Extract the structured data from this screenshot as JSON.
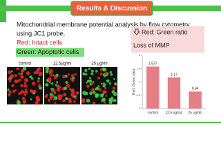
{
  "header": {
    "title": "Results & Discussion"
  },
  "text": {
    "line1": "Mitochondrial membrane potential analysis by flow cytometry",
    "line2": "using JC1 probe.",
    "red_label": "Red: Intact cells",
    "green_label": "Green: Apoptotic cells"
  },
  "images": {
    "labels": [
      "control",
      "12.5µg/ml",
      "25 µg/ml"
    ]
  },
  "callout": {
    "line1": "Red: Green ratio",
    "line2": "Loss of MMP"
  },
  "chart_data": {
    "type": "bar",
    "y_label": "Red: Green ratio",
    "categories": [
      "control",
      "12.5 ug/mL",
      "25 ug/mL"
    ],
    "values": [
      1.577,
      1.17,
      0.64
    ],
    "color": "#e57f86",
    "ylim": [
      0,
      2
    ],
    "yticks": [
      0,
      0.5,
      1,
      1.5,
      2
    ]
  }
}
